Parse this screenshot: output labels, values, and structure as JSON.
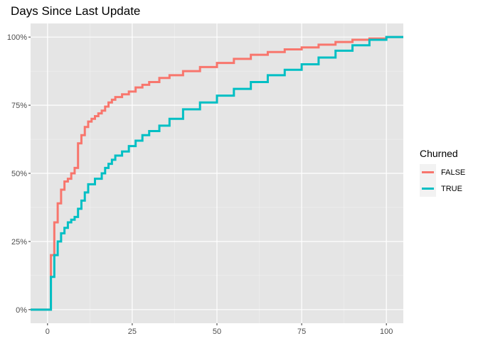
{
  "chart_data": {
    "type": "line",
    "step": true,
    "title": "Days Since Last Update",
    "xlabel": "",
    "ylabel": "",
    "xlim": [
      -5,
      105
    ],
    "ylim": [
      -0.05,
      1.05
    ],
    "x_ticks": [
      0,
      25,
      50,
      75,
      100
    ],
    "x_tick_labels": [
      "0",
      "25",
      "50",
      "75",
      "100"
    ],
    "y_ticks": [
      0,
      0.25,
      0.5,
      0.75,
      1.0
    ],
    "y_tick_labels": [
      "0%",
      "25%",
      "50%",
      "75%",
      "100%"
    ],
    "grid": true,
    "background": "#e5e5e5",
    "legend_title": "Churned",
    "legend_position": "right",
    "series": [
      {
        "name": "FALSE",
        "color": "#f8766d",
        "x": [
          -5,
          1,
          2,
          3,
          4,
          5,
          6,
          7,
          8,
          9,
          10,
          11,
          12,
          13,
          14,
          15,
          16,
          17,
          18,
          19,
          20,
          22,
          24,
          26,
          28,
          30,
          33,
          36,
          40,
          45,
          50,
          55,
          60,
          65,
          70,
          75,
          80,
          85,
          90,
          95,
          100,
          105
        ],
        "y": [
          0,
          0.2,
          0.32,
          0.39,
          0.44,
          0.47,
          0.48,
          0.5,
          0.52,
          0.61,
          0.64,
          0.67,
          0.69,
          0.7,
          0.71,
          0.72,
          0.73,
          0.745,
          0.76,
          0.77,
          0.78,
          0.79,
          0.8,
          0.815,
          0.825,
          0.835,
          0.85,
          0.86,
          0.875,
          0.89,
          0.905,
          0.92,
          0.935,
          0.945,
          0.955,
          0.962,
          0.972,
          0.982,
          0.99,
          0.995,
          1.0,
          1.0
        ]
      },
      {
        "name": "TRUE",
        "color": "#00bfc4",
        "x": [
          -5,
          1,
          2,
          3,
          4,
          5,
          6,
          7,
          8,
          9,
          10,
          11,
          12,
          14,
          16,
          17,
          18,
          19,
          20,
          22,
          24,
          26,
          28,
          30,
          33,
          36,
          40,
          45,
          50,
          55,
          60,
          65,
          70,
          75,
          80,
          85,
          90,
          95,
          100,
          105
        ],
        "y": [
          0,
          0.12,
          0.2,
          0.25,
          0.28,
          0.3,
          0.32,
          0.33,
          0.34,
          0.37,
          0.4,
          0.43,
          0.46,
          0.48,
          0.5,
          0.52,
          0.535,
          0.55,
          0.565,
          0.58,
          0.6,
          0.62,
          0.64,
          0.655,
          0.675,
          0.7,
          0.735,
          0.76,
          0.785,
          0.81,
          0.835,
          0.86,
          0.88,
          0.9,
          0.925,
          0.95,
          0.97,
          0.99,
          1.0,
          1.0
        ]
      }
    ]
  }
}
